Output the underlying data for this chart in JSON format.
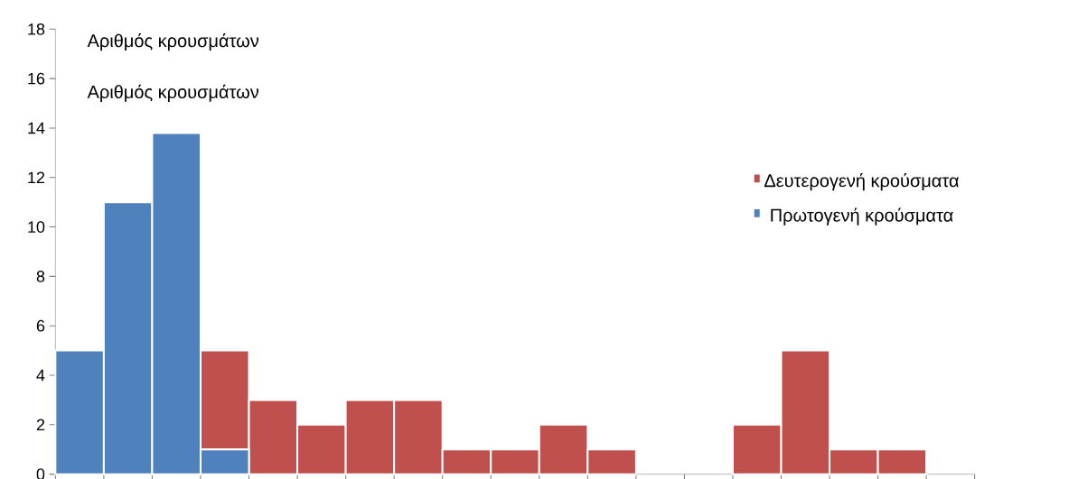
{
  "chart_data": {
    "type": "bar",
    "stacked": true,
    "ylabel": "Αριθμός κρουσμάτων",
    "annotations": [
      "Αριθμός κρουσμάτων"
    ],
    "categories": [
      null,
      null,
      null,
      null,
      null,
      null,
      null,
      null,
      null,
      null,
      null,
      null,
      null,
      null,
      null,
      null,
      null,
      null,
      null
    ],
    "series": [
      {
        "name": "Πρωτογενή κρούσματα",
        "color": "#4f81bd",
        "values": [
          5,
          11,
          13.8,
          1,
          0,
          0,
          0,
          0,
          0,
          0,
          0,
          0,
          0,
          0,
          0,
          0,
          0,
          0,
          0
        ]
      },
      {
        "name": "Δευτερογενή κρούσματα",
        "color": "#c0504d",
        "values": [
          0,
          0,
          0,
          4,
          3,
          2,
          3,
          3,
          1,
          1,
          2,
          1,
          0,
          0,
          2,
          5,
          1,
          1,
          0
        ]
      }
    ],
    "ylim": [
      0,
      18
    ],
    "yticks": [
      0,
      2,
      4,
      6,
      8,
      10,
      12,
      14,
      16,
      18
    ],
    "grid": false,
    "legend": "right",
    "tick_labels": "y"
  }
}
